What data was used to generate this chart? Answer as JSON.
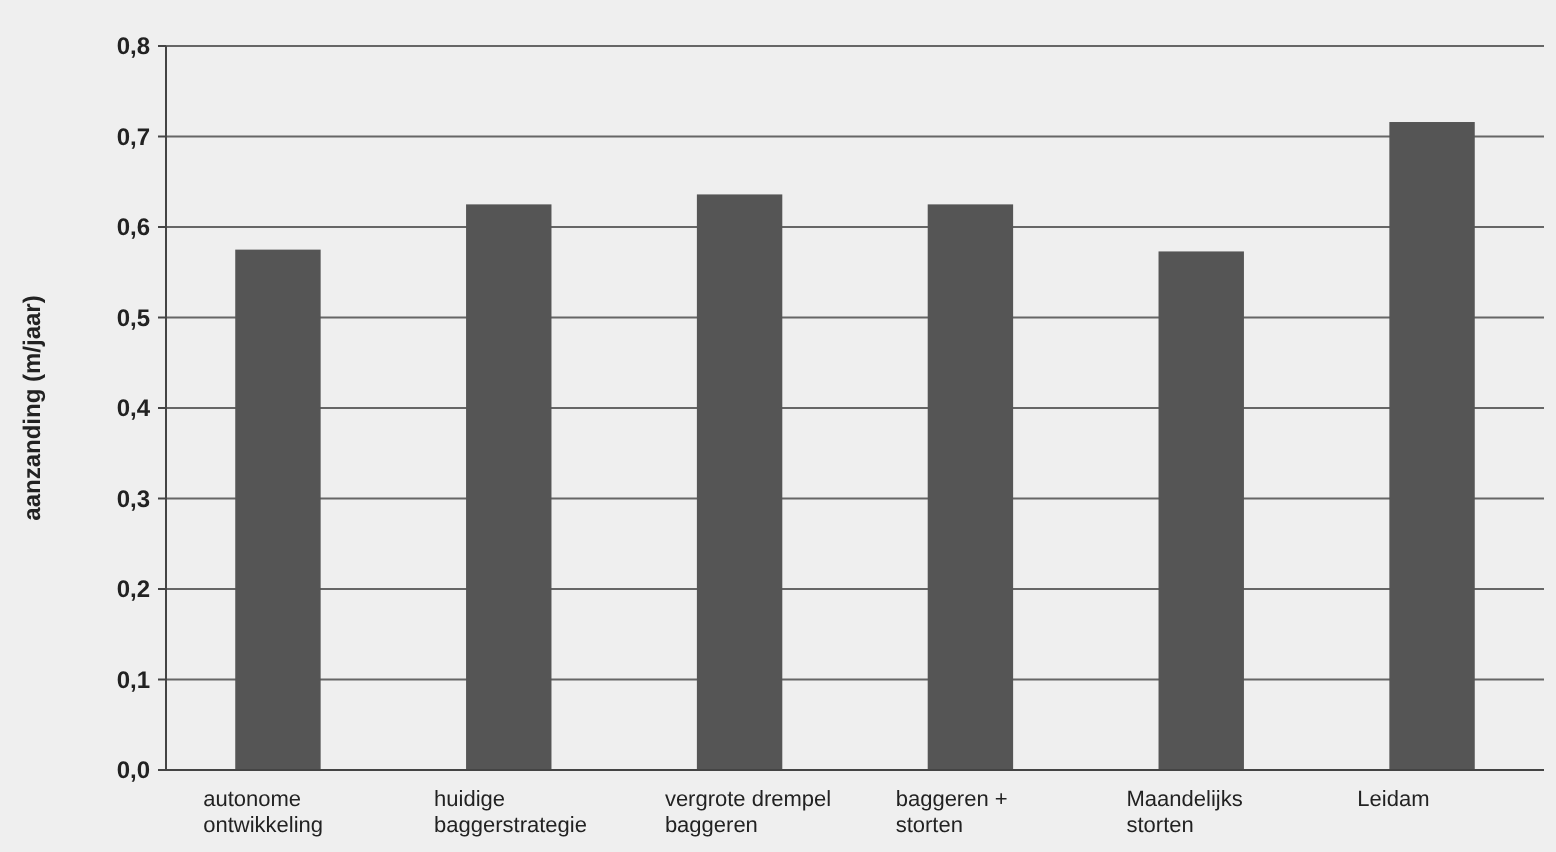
{
  "chart_data": {
    "type": "bar",
    "ylabel": "aanzanding (m/jaar)",
    "categories": [
      "autonome ontwikkeling",
      "huidige baggerstrategie",
      "vergrote drempel baggeren",
      "baggeren + storten",
      "Maandelijks storten",
      "Leidam"
    ],
    "values": [
      0.575,
      0.625,
      0.636,
      0.625,
      0.573,
      0.716
    ],
    "color": "#555555",
    "ylim": [
      0,
      0.8
    ],
    "yticks": [
      {
        "value": 0,
        "label": "0,0"
      },
      {
        "value": 0.1,
        "label": "0,1"
      },
      {
        "value": 0.2,
        "label": "0,2"
      },
      {
        "value": 0.3,
        "label": "0,3"
      },
      {
        "value": 0.4,
        "label": "0,4"
      },
      {
        "value": 0.5,
        "label": "0,5"
      },
      {
        "value": 0.6,
        "label": "0,6"
      },
      {
        "value": 0.7,
        "label": "0,7"
      },
      {
        "value": 0.8,
        "label": "0,8"
      }
    ],
    "grid": "y"
  }
}
